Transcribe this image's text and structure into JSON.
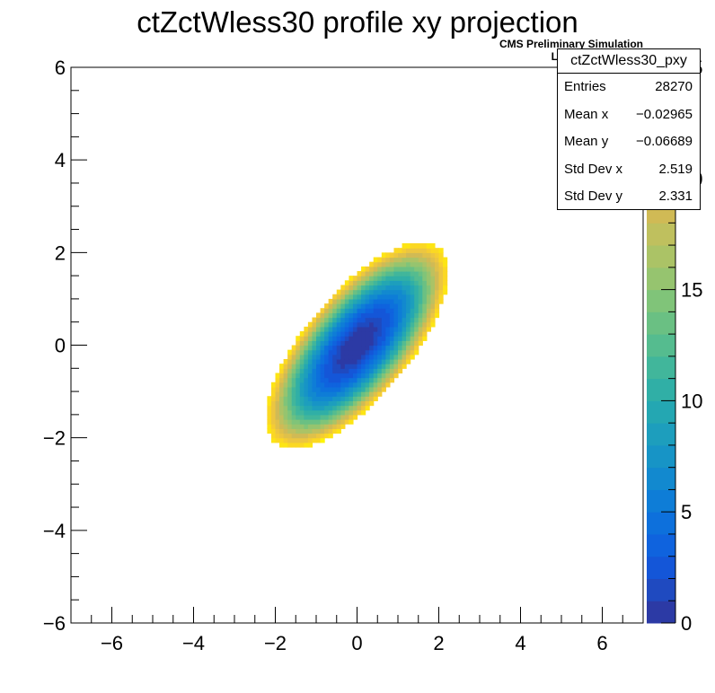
{
  "chart_data": {
    "type": "heatmap",
    "title": "ctZctWless30 profile xy projection",
    "xlabel": "",
    "ylabel": "",
    "xlim": [
      -7,
      7
    ],
    "ylim": [
      -6,
      6
    ],
    "zlim": [
      0,
      25
    ],
    "x_ticks": [
      -6,
      -4,
      -2,
      0,
      2,
      4,
      6
    ],
    "x_tick_labels": [
      "−6",
      "−4",
      "−2",
      "0",
      "2",
      "4",
      "6"
    ],
    "y_ticks": [
      -6,
      -4,
      -2,
      0,
      2,
      4,
      6
    ],
    "y_tick_labels": [
      "−6",
      "−4",
      "−2",
      "0",
      "2",
      "4",
      "6"
    ],
    "z_ticks": [
      0,
      5,
      10,
      15,
      20,
      25
    ],
    "z_tick_labels": [
      "0",
      "5",
      "10",
      "15",
      "20",
      "25"
    ],
    "ellipse_model": {
      "description": "binned map, approx. value = 3*u^2 + 3*v^2 in rotated coords",
      "rotation_deg": 45,
      "sigma_u": 2.9,
      "sigma_v": 1.2,
      "max_value": 24
    },
    "grid": false,
    "palette": [
      "#2c3aa5",
      "#1f4ac0",
      "#1456d8",
      "#0f63de",
      "#0d70dc",
      "#0e7dd7",
      "#1289cf",
      "#1794c6",
      "#1d9ebd",
      "#24a7b2",
      "#30afa6",
      "#41b69b",
      "#55bc8f",
      "#6ac083",
      "#80c479",
      "#96c46f",
      "#abc366",
      "#bfc05e",
      "#d0ba55",
      "#dfc04a",
      "#ecc640",
      "#f5cd33",
      "#fbd823",
      "#fde514",
      "#fef506"
    ]
  },
  "cms_label": {
    "line1": "CMS Preliminary Simulation",
    "line2": "Luminosity=4.1/fb"
  },
  "stats": {
    "name": "ctZctWless30_pxy",
    "rows": [
      {
        "key": "Entries",
        "value": "28270"
      },
      {
        "key": "Mean x",
        "value": "−0.02965"
      },
      {
        "key": "Mean y",
        "value": "−0.06689"
      },
      {
        "key": "Std Dev x",
        "value": "2.519"
      },
      {
        "key": "Std Dev y",
        "value": "2.331"
      }
    ]
  }
}
